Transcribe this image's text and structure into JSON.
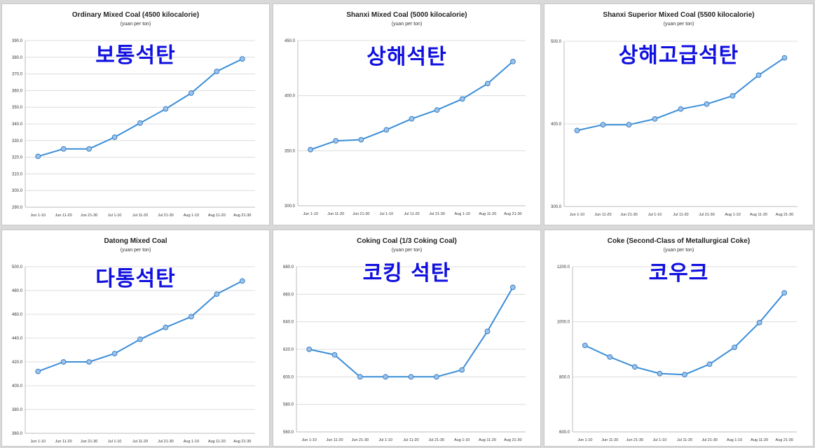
{
  "chart_data": [
    {
      "type": "line",
      "title": "Ordinary Mixed Coal (4500 kilocalorie)",
      "subtitle": "(yuan per ton)",
      "overlay_label": "보통석탄",
      "categories": [
        "Jun 1-10",
        "Jun 11-20",
        "Jun 21-30",
        "Jul 1-10",
        "Jul 11-20",
        "Jul 21-30",
        "Aug 1-10",
        "Aug 11-20",
        "Aug 21-30"
      ],
      "values": [
        320.5,
        325,
        325,
        332,
        340.5,
        349,
        358.5,
        371.5,
        379
      ],
      "ylim": [
        290,
        390
      ],
      "yticks": [
        "390.0",
        "380.0",
        "370.0",
        "360.0",
        "350.0",
        "340.0",
        "330.0",
        "320.0",
        "310.0",
        "300.0",
        "290.0"
      ],
      "grid": true,
      "legend": "none"
    },
    {
      "type": "line",
      "title": "Shanxi Mixed Coal (5000 kilocalorie)",
      "subtitle": "(yuan per ton)",
      "overlay_label": "상해석탄",
      "categories": [
        "Jun 1-10",
        "Jun 11-20",
        "Jun 21-30",
        "Jul 1-10",
        "Jul 11-20",
        "Jul 21-30",
        "Aug 1-10",
        "Aug 11-20",
        "Aug 21-30"
      ],
      "values": [
        351,
        359,
        360,
        369,
        379,
        387,
        397,
        411,
        431
      ],
      "ylim": [
        300,
        450
      ],
      "yticks": [
        "450.0",
        "400.0",
        "350.0",
        "300.0"
      ],
      "grid": true,
      "legend": "none"
    },
    {
      "type": "line",
      "title": "Shanxi Superior Mixed Coal (5500 kilocalorie)",
      "subtitle": "(yuan per ton)",
      "overlay_label": "상해고급석탄",
      "categories": [
        "Jun 1-10",
        "Jun 11-20",
        "Jun 21-30",
        "Jul 1-10",
        "Jul 11-20",
        "Jul 21-30",
        "Aug 1-10",
        "Aug 11-20",
        "Aug 21-30"
      ],
      "values": [
        392,
        399,
        399,
        406,
        418,
        424,
        434,
        459,
        480
      ],
      "ylim": [
        300,
        500
      ],
      "yticks": [
        "500.0",
        "400.0",
        "300.0"
      ],
      "grid": true,
      "legend": "none"
    },
    {
      "type": "line",
      "title": "Datong Mixed Coal",
      "subtitle": "(yuan per ton)",
      "overlay_label": "다통석탄",
      "categories": [
        "Jun 1-10",
        "Jun 11-20",
        "Jun 21-30",
        "Jul 1-10",
        "Jul 11-20",
        "Jul 21-30",
        "Aug 1-10",
        "Aug 11-20",
        "Aug 21-30"
      ],
      "values": [
        412,
        420,
        420,
        427,
        439,
        449,
        458,
        477,
        488
      ],
      "ylim": [
        360,
        500
      ],
      "yticks": [
        "500.0",
        "480.0",
        "460.0",
        "440.0",
        "420.0",
        "400.0",
        "380.0",
        "360.0"
      ],
      "grid": true,
      "legend": "none"
    },
    {
      "type": "line",
      "title": "Coking Coal (1/3 Coking Coal)",
      "subtitle": "(yuan per ton)",
      "overlay_label": "코킹 석탄",
      "categories": [
        "Jun 1-10",
        "Jun 11-20",
        "Jun 21-30",
        "Jul 1-10",
        "Jul 11-20",
        "Jul 21-30",
        "Aug 1-10",
        "Aug 11-20",
        "Aug 21-30"
      ],
      "values": [
        620,
        616,
        600,
        600,
        600,
        600,
        605,
        633,
        665
      ],
      "ylim": [
        560,
        680
      ],
      "yticks": [
        "680.0",
        "660.0",
        "640.0",
        "620.0",
        "600.0",
        "580.0",
        "560.0"
      ],
      "grid": true,
      "legend": "none"
    },
    {
      "type": "line",
      "title": "Coke (Second-Class of Metallurgical Coke)",
      "subtitle": "(yuan per ton)",
      "overlay_label": "코우크",
      "categories": [
        "Jun 1-10",
        "Jun 11-20",
        "Jun 21-30",
        "Jul 1-10",
        "Jul 11-20",
        "Jul 21-30",
        "Aug 1-10",
        "Aug 11-20",
        "Aug 21-30"
      ],
      "values": [
        914,
        872,
        836,
        812,
        808,
        846,
        907,
        997,
        1105
      ],
      "ylim": [
        600,
        1200
      ],
      "yticks": [
        "1200.0",
        "1000.0",
        "800.0",
        "600.0"
      ],
      "grid": true,
      "legend": "none"
    }
  ],
  "colors": {
    "line": "#3a8ed8",
    "marker_fill": "#9cc3ea",
    "marker_stroke": "#3a7fc7",
    "grid": "#dcdcdc",
    "overlay_text": "#1010e0"
  }
}
